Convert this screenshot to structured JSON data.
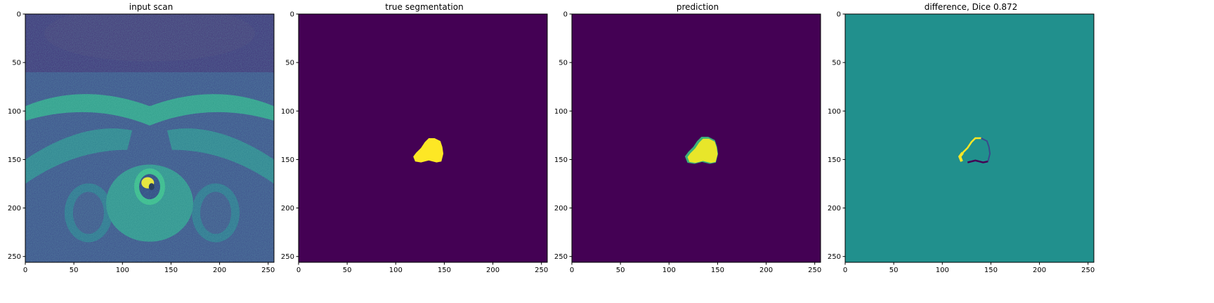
{
  "panels": [
    {
      "title": "input scan",
      "image": "mri-input-scan"
    },
    {
      "title": "true segmentation",
      "image": "ground-truth-mask"
    },
    {
      "title": "prediction",
      "image": "predicted-mask"
    },
    {
      "title": "difference, Dice 0.872",
      "image": "difference-map"
    }
  ],
  "axes": {
    "x_ticks": [
      "0",
      "50",
      "100",
      "150",
      "200",
      "250"
    ],
    "y_ticks": [
      "0",
      "50",
      "100",
      "150",
      "200",
      "250"
    ],
    "x_range": [
      0,
      256
    ],
    "y_range": [
      0,
      256
    ]
  },
  "colors": {
    "viridis_low": "#440154",
    "viridis_mid": "#21908d",
    "viridis_high": "#fde725"
  }
}
